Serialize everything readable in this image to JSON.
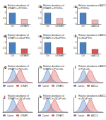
{
  "chart_data": [
    {
      "type": "bar",
      "panel": "a",
      "title": "Relative abundance of STEAP1 in PC3 EVs",
      "categories": [
        "Ctrl",
        "siSTEAP1"
      ],
      "values": [
        1,
        0.42
      ],
      "colors": [
        "#4a7fc1",
        "#f0b8b8"
      ],
      "ylim": [
        0,
        1.5
      ],
      "yticks": [
        0,
        0.5,
        1,
        1.5
      ]
    },
    {
      "type": "bar",
      "panel": "b",
      "title": "Relative abundance of STEAP2 in PC3 EVs",
      "categories": [
        "Ctrl",
        "siSTEAP2"
      ],
      "values": [
        1,
        0.5
      ],
      "colors": [
        "#4a7fc1",
        "#f0b8b8"
      ],
      "ylim": [
        0,
        1.5
      ],
      "yticks": [
        0,
        0.5,
        1,
        1.5
      ]
    },
    {
      "type": "bar",
      "panel": "c",
      "title": "Relative abundance of ABCC4 in PC3 EVs",
      "categories": [
        "Ctrl",
        "siABCC4"
      ],
      "values": [
        1,
        0.38
      ],
      "colors": [
        "#4a7fc1",
        "#f0b8b8"
      ],
      "ylim": [
        0,
        1.5
      ],
      "yticks": [
        0,
        0.5,
        1,
        1.5
      ]
    },
    {
      "type": "bar",
      "panel": "d",
      "title": "Relative abundance of STEAP1 in LNCaP EVs",
      "categories": [
        "Ctrl",
        "siSTEAP1"
      ],
      "values": [
        1,
        0.45
      ],
      "colors": [
        "#4a7fc1",
        "#d9534f"
      ],
      "ylim": [
        0,
        1.5
      ],
      "yticks": [
        0,
        0.5,
        1,
        1.5
      ]
    },
    {
      "type": "bar",
      "panel": "e",
      "title": "Relative abundance of STEAP2 in LNCaP EVs",
      "categories": [
        "Ctrl",
        "siSTEAP2"
      ],
      "values": [
        1,
        0.55
      ],
      "colors": [
        "#4a7fc1",
        "#d9534f"
      ],
      "ylim": [
        0,
        1.5
      ],
      "yticks": [
        0,
        0.5,
        1,
        1.5
      ]
    },
    {
      "type": "bar",
      "panel": "f",
      "title": "Relative abundance of ABCC4 in LNCaP EVs",
      "categories": [
        "Ctrl",
        "siABCC4"
      ],
      "values": [
        1,
        0.4
      ],
      "colors": [
        "#4a7fc1",
        "#d9534f"
      ],
      "ylim": [
        0,
        1.5
      ],
      "yticks": [
        0,
        0.5,
        1,
        1.5
      ]
    },
    {
      "type": "line",
      "panel": "g",
      "title": "Relative abundance of STEAP1 in PC3 cells",
      "x": [
        0,
        5,
        10,
        15,
        20,
        25,
        30,
        35,
        40,
        45,
        50,
        55,
        60,
        65,
        70,
        75,
        80,
        85,
        90,
        95,
        100
      ],
      "xlim": [
        0,
        100
      ],
      "ylim": [
        0,
        80
      ],
      "tick_labels": false,
      "legend": "bottom",
      "series": [
        {
          "name": "Control",
          "color": "#4a7fc1",
          "values": [
            0,
            1,
            3,
            8,
            18,
            35,
            55,
            70,
            60,
            40,
            22,
            10,
            4,
            2,
            1,
            0,
            0,
            0,
            0,
            0,
            0
          ]
        },
        {
          "name": "STEAP1",
          "color": "#d9534f",
          "values": [
            0,
            0,
            0,
            0,
            1,
            2,
            5,
            10,
            20,
            35,
            50,
            65,
            70,
            55,
            35,
            18,
            8,
            3,
            1,
            0,
            0
          ]
        }
      ]
    },
    {
      "type": "line",
      "panel": "h",
      "title": "Relative abundance of STEAP2 in PC3 cells",
      "x": [
        0,
        5,
        10,
        15,
        20,
        25,
        30,
        35,
        40,
        45,
        50,
        55,
        60,
        65,
        70,
        75,
        80,
        85,
        90,
        95,
        100
      ],
      "xlim": [
        0,
        100
      ],
      "ylim": [
        0,
        80
      ],
      "tick_labels": false,
      "legend": "bottom",
      "series": [
        {
          "name": "Control",
          "color": "#4a7fc1",
          "values": [
            0,
            2,
            6,
            15,
            30,
            50,
            68,
            62,
            45,
            28,
            14,
            6,
            2,
            1,
            0,
            0,
            0,
            0,
            0,
            0,
            0
          ]
        },
        {
          "name": "STEAP2",
          "color": "#d9534f",
          "values": [
            0,
            0,
            0,
            1,
            2,
            4,
            8,
            15,
            28,
            45,
            62,
            68,
            58,
            40,
            24,
            12,
            5,
            2,
            1,
            0,
            0
          ]
        }
      ]
    },
    {
      "type": "line",
      "panel": "i",
      "title": "Relative abundance of ABCC4 in PC3 cells",
      "x": [
        0,
        5,
        10,
        15,
        20,
        25,
        30,
        35,
        40,
        45,
        50,
        55,
        60,
        65,
        70,
        75,
        80,
        85,
        90,
        95,
        100
      ],
      "xlim": [
        0,
        100
      ],
      "ylim": [
        0,
        80
      ],
      "tick_labels": false,
      "legend": "bottom",
      "series": [
        {
          "name": "Control",
          "color": "#4a7fc1",
          "values": [
            0,
            1,
            4,
            10,
            22,
            40,
            60,
            66,
            52,
            34,
            18,
            8,
            3,
            1,
            0,
            0,
            0,
            0,
            0,
            0,
            0
          ]
        },
        {
          "name": "ABCC4",
          "color": "#d9534f",
          "values": [
            0,
            0,
            0,
            0,
            1,
            3,
            6,
            12,
            24,
            40,
            56,
            66,
            62,
            46,
            28,
            14,
            6,
            2,
            1,
            0,
            0
          ]
        }
      ]
    },
    {
      "type": "line",
      "panel": "j",
      "title": "Relative abundance of STEAP1 in LNCaP cells",
      "x": [
        0,
        5,
        10,
        15,
        20,
        25,
        30,
        35,
        40,
        45,
        50,
        55,
        60,
        65,
        70,
        75,
        80,
        85,
        90,
        95,
        100
      ],
      "xlim": [
        0,
        100
      ],
      "ylim": [
        0,
        80
      ],
      "tick_labels": false,
      "legend": "bottom",
      "series": [
        {
          "name": "Control",
          "color": "#4a7fc1",
          "values": [
            0,
            1,
            3,
            9,
            20,
            38,
            58,
            68,
            56,
            36,
            20,
            9,
            4,
            1,
            0,
            0,
            0,
            0,
            0,
            0,
            0
          ]
        },
        {
          "name": "STEAP1",
          "color": "#d9534f",
          "values": [
            0,
            0,
            0,
            0,
            1,
            2,
            4,
            9,
            18,
            32,
            48,
            62,
            68,
            58,
            38,
            20,
            9,
            3,
            1,
            0,
            0
          ]
        }
      ]
    },
    {
      "type": "line",
      "panel": "k",
      "title": "Relative abundance of STEAP2 in LNCaP cells",
      "x": [
        0,
        5,
        10,
        15,
        20,
        25,
        30,
        35,
        40,
        45,
        50,
        55,
        60,
        65,
        70,
        75,
        80,
        85,
        90,
        95,
        100
      ],
      "xlim": [
        0,
        100
      ],
      "ylim": [
        0,
        80
      ],
      "tick_labels": false,
      "legend": "bottom",
      "series": [
        {
          "name": "Control",
          "color": "#4a7fc1",
          "values": [
            0,
            2,
            5,
            13,
            27,
            46,
            64,
            64,
            48,
            30,
            16,
            7,
            3,
            1,
            0,
            0,
            0,
            0,
            0,
            0,
            0
          ]
        },
        {
          "name": "STEAP2",
          "color": "#d9534f",
          "values": [
            0,
            0,
            0,
            1,
            2,
            3,
            7,
            13,
            25,
            42,
            58,
            67,
            60,
            43,
            26,
            13,
            6,
            2,
            1,
            0,
            0
          ]
        }
      ]
    },
    {
      "type": "line",
      "panel": "l",
      "title": "Relative abundance of ABCC4 in LNCaP cells",
      "x": [
        0,
        5,
        10,
        15,
        20,
        25,
        30,
        35,
        40,
        45,
        50,
        55,
        60,
        65,
        70,
        75,
        80,
        85,
        90,
        95,
        100
      ],
      "xlim": [
        0,
        100
      ],
      "ylim": [
        0,
        80
      ],
      "tick_labels": false,
      "legend": "bottom",
      "series": [
        {
          "name": "Control",
          "color": "#4a7fc1",
          "values": [
            0,
            1,
            4,
            11,
            24,
            42,
            61,
            65,
            50,
            32,
            17,
            8,
            3,
            1,
            0,
            0,
            0,
            0,
            0,
            0,
            0
          ]
        },
        {
          "name": "ABCC4",
          "color": "#d9534f",
          "values": [
            0,
            0,
            0,
            0,
            1,
            3,
            6,
            11,
            22,
            38,
            54,
            65,
            64,
            48,
            30,
            15,
            7,
            2,
            1,
            0,
            0
          ]
        }
      ]
    }
  ]
}
